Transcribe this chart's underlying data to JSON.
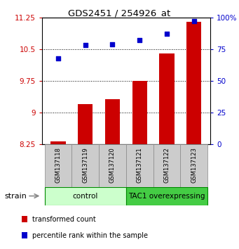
{
  "title": "GDS2451 / 254926_at",
  "samples": [
    "GSM137118",
    "GSM137119",
    "GSM137120",
    "GSM137121",
    "GSM137122",
    "GSM137123"
  ],
  "transformed_counts": [
    8.32,
    9.2,
    9.32,
    9.75,
    10.4,
    11.15
  ],
  "percentile_ranks": [
    68,
    78,
    79,
    82,
    87,
    97
  ],
  "ylim_left": [
    8.25,
    11.25
  ],
  "ylim_right": [
    0,
    100
  ],
  "yticks_left": [
    8.25,
    9.0,
    9.75,
    10.5,
    11.25
  ],
  "ytick_labels_left": [
    "8.25",
    "9",
    "9.75",
    "10.5",
    "11.25"
  ],
  "yticks_right": [
    0,
    25,
    50,
    75,
    100
  ],
  "ytick_labels_right": [
    "0",
    "25",
    "50",
    "75",
    "100%"
  ],
  "bar_color": "#cc0000",
  "dot_color": "#0000cc",
  "bar_bottom": 8.25,
  "groups": [
    {
      "label": "control",
      "indices": [
        0,
        1,
        2
      ],
      "color": "#ccffcc",
      "border": "#008800"
    },
    {
      "label": "TAC1 overexpressing",
      "indices": [
        3,
        4,
        5
      ],
      "color": "#44cc44",
      "border": "#008800"
    }
  ],
  "strain_label": "strain",
  "legend_items": [
    {
      "color": "#cc0000",
      "label": "transformed count"
    },
    {
      "color": "#0000cc",
      "label": "percentile rank within the sample"
    }
  ],
  "tick_color_left": "#cc0000",
  "tick_color_right": "#0000cc",
  "bar_width": 0.55,
  "sample_box_color": "#cccccc",
  "sample_box_edge": "#888888"
}
